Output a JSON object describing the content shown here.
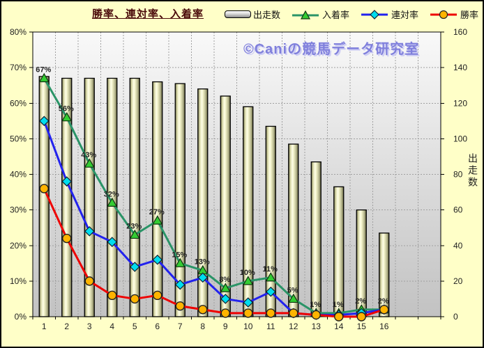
{
  "window": {
    "background": "#FFFFC8",
    "border_color": "#000000"
  },
  "header": {
    "title": "勝率、連対率、入着率",
    "title_color": "#4A0A0A"
  },
  "watermark": {
    "text": "©Caniの競馬データ研究室",
    "color": "#8080DC"
  },
  "legend": {
    "items": [
      {
        "label": "出走数",
        "icon": "bar-swatch"
      },
      {
        "label": "入着率",
        "icon": "triangle-marker-line",
        "line_color": "#2A9467",
        "marker_color": "#33CC33"
      },
      {
        "label": "連対率",
        "icon": "diamond-marker-line",
        "line_color": "#2222EE",
        "marker_color": "#00DDEE"
      },
      {
        "label": "勝率",
        "icon": "circle-marker-line",
        "line_color": "#EE0000",
        "marker_color": "#FFB400"
      }
    ]
  },
  "chart_data": {
    "type": "bar+line combo",
    "title": "勝率、連対率、入着率",
    "categories": [
      "1",
      "2",
      "3",
      "4",
      "5",
      "6",
      "7",
      "8",
      "9",
      "10",
      "11",
      "12",
      "13",
      "14",
      "15",
      "16"
    ],
    "x_slots": 18,
    "grid": true,
    "plot_gradient": [
      "#F9F9F9",
      "#C2C2C2"
    ],
    "left_axis": {
      "min": 0,
      "max": 80,
      "ticks": [
        "0%",
        "10%",
        "20%",
        "30%",
        "40%",
        "50%",
        "60%",
        "70%",
        "80%"
      ]
    },
    "right_axis": {
      "min": 0,
      "max": 160,
      "ticks": [
        "0",
        "20",
        "40",
        "60",
        "80",
        "100",
        "120",
        "140",
        "160"
      ],
      "title": "出走数"
    },
    "series": [
      {
        "name": "出走数",
        "type": "bar",
        "axis": "right",
        "values": [
          135,
          134,
          134,
          134,
          134,
          132,
          131,
          128,
          124,
          118,
          107,
          97,
          87,
          73,
          60,
          47
        ],
        "bar_gradient": [
          "#6E6E48",
          "#DCDCAC",
          "#FFFFE8",
          "#EEEEC4",
          "#B4B48C",
          "#60603C"
        ]
      },
      {
        "name": "入着率",
        "type": "line",
        "axis": "left",
        "color": "#2A9467",
        "marker": "triangle",
        "marker_color": "#33CC33",
        "marker_stroke": "#113311",
        "values": [
          67,
          56,
          43,
          32,
          23,
          27,
          15,
          13,
          8,
          10,
          11,
          5,
          1,
          1,
          2,
          2
        ],
        "labels": [
          "67%",
          "56%",
          "43%",
          "32%",
          "23%",
          "27%",
          "15%",
          "13%",
          "8%",
          "10%",
          "11%",
          "5%",
          "1%",
          "1%",
          "2%",
          "2%"
        ]
      },
      {
        "name": "連対率",
        "type": "line",
        "axis": "left",
        "color": "#2222EE",
        "marker": "diamond",
        "marker_color": "#00DDEE",
        "marker_stroke": "#112233",
        "values": [
          55,
          38,
          24,
          21,
          14,
          16,
          9,
          11,
          5,
          4,
          7,
          1,
          0.5,
          0.5,
          1,
          2
        ]
      },
      {
        "name": "勝率",
        "type": "line",
        "axis": "left",
        "color": "#EE0000",
        "marker": "circle",
        "marker_color": "#FFB400",
        "marker_stroke": "#222222",
        "values": [
          36,
          22,
          10,
          6,
          5,
          6,
          3,
          2,
          1,
          1,
          1,
          1,
          0.5,
          0,
          0,
          2
        ]
      }
    ]
  }
}
